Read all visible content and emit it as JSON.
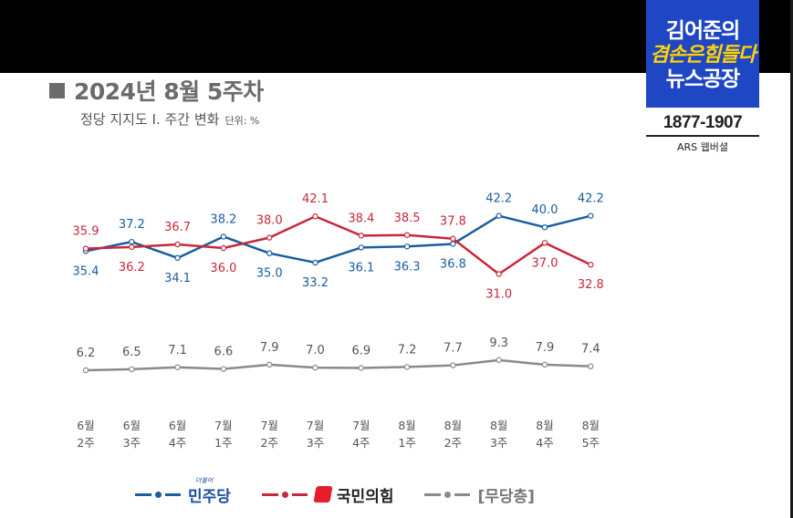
{
  "title": "2024년 8월 5주차",
  "subtitle": "정당 지지도 Ⅰ. 주간 변화",
  "unit": "단위: %",
  "logo": {
    "line1": "김어준의",
    "line2": "겸손은힘들다",
    "line3": "뉴스공장",
    "poll_numbers": "1877-1907",
    "poll_method": "ARS 웹버셜"
  },
  "colors": {
    "democratic": "#1a5ea0",
    "ppp": "#c8283a",
    "independent": "#8a8a8a"
  },
  "chart_data": {
    "type": "line",
    "categories": [
      [
        "6월",
        "2주"
      ],
      [
        "6월",
        "3주"
      ],
      [
        "6월",
        "4주"
      ],
      [
        "7월",
        "1주"
      ],
      [
        "7월",
        "2주"
      ],
      [
        "7월",
        "3주"
      ],
      [
        "7월",
        "4주"
      ],
      [
        "8월",
        "1주"
      ],
      [
        "8월",
        "2주"
      ],
      [
        "8월",
        "3주"
      ],
      [
        "8월",
        "4주"
      ],
      [
        "8월",
        "5주"
      ]
    ],
    "series": [
      {
        "name": "민주당",
        "key": "democratic",
        "values": [
          35.4,
          37.2,
          34.1,
          38.2,
          35.0,
          33.2,
          36.1,
          36.3,
          36.8,
          42.2,
          40.0,
          42.2
        ]
      },
      {
        "name": "국민의힘",
        "key": "ppp",
        "values": [
          35.9,
          36.2,
          36.7,
          36.0,
          38.0,
          42.1,
          38.4,
          38.5,
          37.8,
          31.0,
          37.0,
          32.8
        ]
      },
      {
        "name": "[무당층]",
        "key": "independent",
        "values": [
          6.2,
          6.5,
          7.1,
          6.6,
          7.9,
          7.0,
          6.9,
          7.2,
          7.7,
          9.3,
          7.9,
          7.4
        ]
      }
    ],
    "label_position": {
      "democratic": [
        "below",
        "above",
        "below",
        "above",
        "below",
        "below",
        "below",
        "below",
        "below",
        "above",
        "above",
        "above"
      ],
      "ppp": [
        "above",
        "below",
        "above",
        "below",
        "above",
        "above",
        "above",
        "above",
        "above",
        "below",
        "below",
        "below"
      ],
      "independent": [
        "above",
        "above",
        "above",
        "above",
        "above",
        "above",
        "above",
        "above",
        "above",
        "above",
        "above",
        "above"
      ]
    }
  },
  "legend": {
    "dem_small_text": "더불어"
  }
}
